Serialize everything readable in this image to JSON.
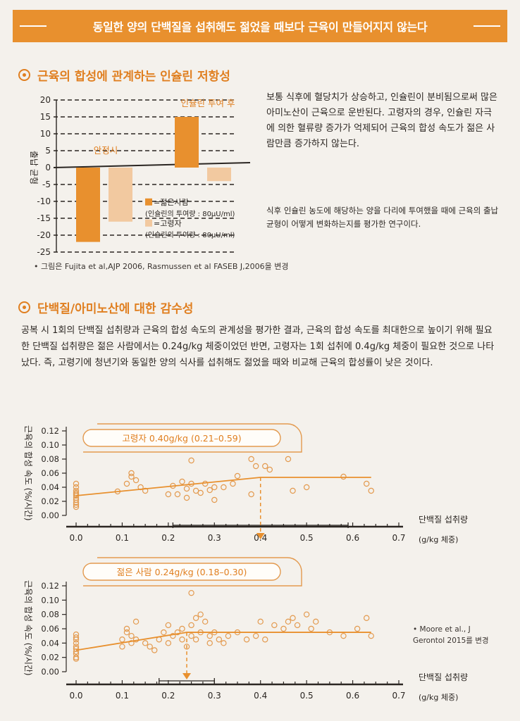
{
  "banner": {
    "text": "동일한 양의 단백질을 섭취해도 젊었을 때보다 근육이 만들어지지 않는다"
  },
  "section1": {
    "title": "근육의 합성에 관계하는 인슐린 저항성",
    "body": "보통 식후에 혈당치가 상승하고, 인슐린이 분비됨으로써 많은 아미노산이 근육으로 운반된다. 고령자의 경우, 인슐린 자극에 의한 혈류량 증가가 억제되어 근육의 합성 속도가 젊은 사람만큼 증가하지 않는다.",
    "caption": "식후 인슐린 농도에 해당하는 양을 다리에 투여했을 때에 근육의 출납 균형이 어떻게 변화하는지를 평가한 연구이다.",
    "source": "• 그림은 Fujita et al,AJP 2006, Rasmussen et al FASEB J,2006을 변경"
  },
  "section2": {
    "title": "단백질/아미노산에 대한 감수성",
    "body": "공복 시 1회의 단백질 섭취량과 근육의 합성 속도의 관계성을 평가한 결과, 근육의 합성 속도를 최대한으로 높이기 위해 필요한 단백질 섭취량은 젊은 사람에서는 0.24g/kg 체중이었던 반면, 고령자는 1회 섭취에 0.4g/kg 체중이 필요한 것으로 나타났다. 즉, 고령기에 청년기와 동일한 양의 식사를 섭취해도 젊었을 때와 비교해 근육의 합성률이 낮은 것이다.",
    "source": "• Moore et al., J Gerontol 2015를 변경"
  },
  "colors": {
    "orange": "#e8902e",
    "peach": "#f2c9a0",
    "dot": "#e39a4f"
  },
  "chart_data": [
    {
      "type": "bar",
      "ylabel": "출납 균형",
      "ylim": [
        -25,
        20
      ],
      "yticks": [
        20,
        15,
        10,
        5,
        0,
        -5,
        -10,
        -15,
        -20,
        -25
      ],
      "groups": [
        "안정시",
        "인슐린 투여 후"
      ],
      "series": [
        {
          "name": "=젊은사람",
          "sub": "(인슐린의 투여량 : 80μU/ml)",
          "color": "#e8902e",
          "values": [
            -22,
            15
          ]
        },
        {
          "name": "=고령자",
          "sub": "(인슐린의 투여량 : 80μU/ml)",
          "color": "#f2c9a0",
          "values": [
            -16,
            -4
          ]
        }
      ]
    },
    {
      "type": "scatter",
      "ylabel": "근육의 합성 속도 (%/시간)",
      "xlabel": "단백질 섭취량 (g/kg 체중)",
      "xlim": [
        0,
        0.7
      ],
      "ylim": [
        0,
        0.12
      ],
      "xticks": [
        "0.0",
        "0.1",
        "0.2",
        "0.3",
        "0.4",
        "0.5",
        "0.6",
        "0.7"
      ],
      "yticks": [
        "0.12",
        "0.10",
        "0.08",
        "0.06",
        "0.04",
        "0.02",
        "0.00"
      ],
      "annotation": "고령자 0.40g/kg (0.21–0.59)",
      "breakpoint": 0.4,
      "ci": [
        0.21,
        0.59
      ],
      "fit": [
        [
          0,
          0.028
        ],
        [
          0.4,
          0.054
        ],
        [
          0.64,
          0.054
        ]
      ],
      "points": [
        [
          0,
          0.045
        ],
        [
          0,
          0.04
        ],
        [
          0,
          0.035
        ],
        [
          0,
          0.032
        ],
        [
          0,
          0.03
        ],
        [
          0,
          0.028
        ],
        [
          0,
          0.025
        ],
        [
          0,
          0.022
        ],
        [
          0,
          0.018
        ],
        [
          0,
          0.015
        ],
        [
          0,
          0.012
        ],
        [
          0.09,
          0.034
        ],
        [
          0.11,
          0.045
        ],
        [
          0.12,
          0.06
        ],
        [
          0.12,
          0.055
        ],
        [
          0.13,
          0.05
        ],
        [
          0.14,
          0.04
        ],
        [
          0.15,
          0.035
        ],
        [
          0.2,
          0.03
        ],
        [
          0.21,
          0.042
        ],
        [
          0.22,
          0.03
        ],
        [
          0.23,
          0.048
        ],
        [
          0.24,
          0.038
        ],
        [
          0.24,
          0.025
        ],
        [
          0.25,
          0.045
        ],
        [
          0.25,
          0.078
        ],
        [
          0.26,
          0.035
        ],
        [
          0.27,
          0.032
        ],
        [
          0.28,
          0.045
        ],
        [
          0.29,
          0.036
        ],
        [
          0.3,
          0.04
        ],
        [
          0.3,
          0.022
        ],
        [
          0.32,
          0.04
        ],
        [
          0.34,
          0.045
        ],
        [
          0.35,
          0.056
        ],
        [
          0.38,
          0.03
        ],
        [
          0.38,
          0.08
        ],
        [
          0.39,
          0.07
        ],
        [
          0.41,
          0.07
        ],
        [
          0.42,
          0.065
        ],
        [
          0.46,
          0.08
        ],
        [
          0.47,
          0.035
        ],
        [
          0.5,
          0.04
        ],
        [
          0.58,
          0.055
        ],
        [
          0.63,
          0.045
        ],
        [
          0.64,
          0.035
        ]
      ]
    },
    {
      "type": "scatter",
      "ylabel": "근육의 합성 속도 (%/시간)",
      "xlabel": "단백질 섭취량 (g/kg 체중)",
      "xlim": [
        0,
        0.7
      ],
      "ylim": [
        0,
        0.12
      ],
      "xticks": [
        "0.0",
        "0.1",
        "0.2",
        "0.3",
        "0.4",
        "0.5",
        "0.6",
        "0.7"
      ],
      "yticks": [
        "0.12",
        "0.10",
        "0.08",
        "0.06",
        "0.04",
        "0.02",
        "0.00"
      ],
      "annotation": "젊은 사람 0.24g/kg (0.18–0.30)",
      "breakpoint": 0.24,
      "ci": [
        0.18,
        0.3
      ],
      "fit": [
        [
          0,
          0.03
        ],
        [
          0.24,
          0.055
        ],
        [
          0.64,
          0.055
        ]
      ],
      "points": [
        [
          0,
          0.052
        ],
        [
          0,
          0.048
        ],
        [
          0,
          0.045
        ],
        [
          0,
          0.04
        ],
        [
          0,
          0.035
        ],
        [
          0,
          0.032
        ],
        [
          0,
          0.028
        ],
        [
          0,
          0.025
        ],
        [
          0,
          0.02
        ],
        [
          0,
          0.018
        ],
        [
          0.1,
          0.045
        ],
        [
          0.1,
          0.035
        ],
        [
          0.11,
          0.06
        ],
        [
          0.11,
          0.055
        ],
        [
          0.12,
          0.05
        ],
        [
          0.12,
          0.04
        ],
        [
          0.13,
          0.07
        ],
        [
          0.13,
          0.045
        ],
        [
          0.15,
          0.04
        ],
        [
          0.16,
          0.035
        ],
        [
          0.17,
          0.03
        ],
        [
          0.18,
          0.045
        ],
        [
          0.19,
          0.055
        ],
        [
          0.2,
          0.065
        ],
        [
          0.2,
          0.04
        ],
        [
          0.21,
          0.05
        ],
        [
          0.22,
          0.055
        ],
        [
          0.23,
          0.06
        ],
        [
          0.23,
          0.045
        ],
        [
          0.24,
          0.035
        ],
        [
          0.25,
          0.065
        ],
        [
          0.25,
          0.05
        ],
        [
          0.26,
          0.075
        ],
        [
          0.26,
          0.045
        ],
        [
          0.27,
          0.08
        ],
        [
          0.27,
          0.055
        ],
        [
          0.28,
          0.07
        ],
        [
          0.29,
          0.05
        ],
        [
          0.29,
          0.04
        ],
        [
          0.3,
          0.055
        ],
        [
          0.31,
          0.045
        ],
        [
          0.32,
          0.04
        ],
        [
          0.33,
          0.05
        ],
        [
          0.35,
          0.055
        ],
        [
          0.37,
          0.045
        ],
        [
          0.39,
          0.05
        ],
        [
          0.4,
          0.07
        ],
        [
          0.41,
          0.045
        ],
        [
          0.43,
          0.065
        ],
        [
          0.45,
          0.06
        ],
        [
          0.46,
          0.07
        ],
        [
          0.47,
          0.075
        ],
        [
          0.48,
          0.065
        ],
        [
          0.5,
          0.08
        ],
        [
          0.51,
          0.06
        ],
        [
          0.52,
          0.07
        ],
        [
          0.55,
          0.055
        ],
        [
          0.58,
          0.05
        ],
        [
          0.61,
          0.06
        ],
        [
          0.63,
          0.075
        ],
        [
          0.64,
          0.05
        ],
        [
          0.25,
          0.11
        ]
      ]
    }
  ]
}
